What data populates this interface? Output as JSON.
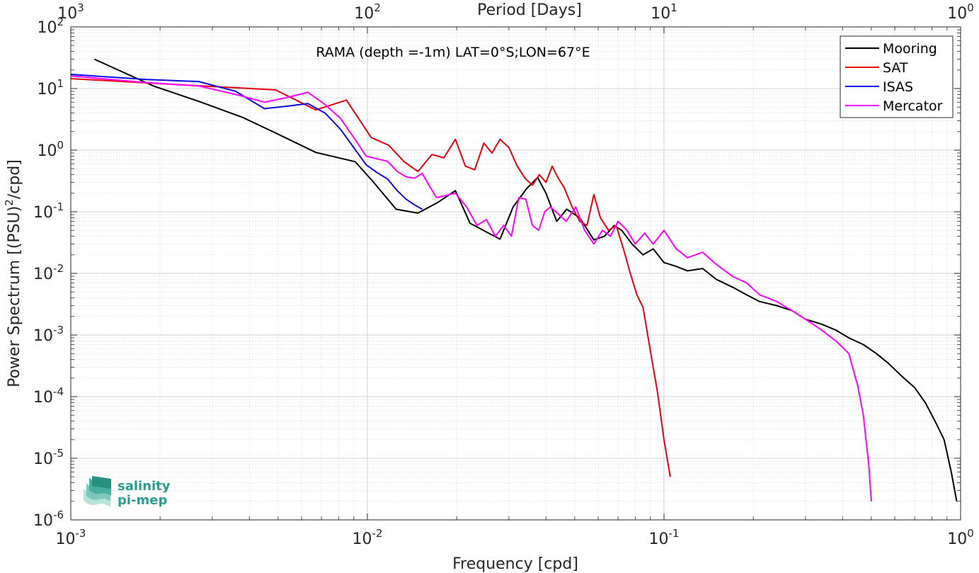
{
  "chart_data": {
    "type": "line",
    "xscale": "log",
    "yscale": "log",
    "title": "",
    "annotation": "RAMA (depth =-1m) LAT=0°S;LON=67°E",
    "xlabel": "Frequency [cpd]",
    "ylabel": "Power Spectrum [(PSU)",
    "ylabel_sup": "2",
    "ylabel_tail": "/cpd]",
    "top_xlabel": "Period [Days]",
    "xlim": [
      0.001,
      1
    ],
    "ylim": [
      1e-06,
      100
    ],
    "grid": true,
    "legend_position": "top-right",
    "x_ticks": [
      {
        "value": 0.001,
        "base": "10",
        "exp": "-3"
      },
      {
        "value": 0.01,
        "base": "10",
        "exp": "-2"
      },
      {
        "value": 0.1,
        "base": "10",
        "exp": "-1"
      },
      {
        "value": 1,
        "base": "10",
        "exp": "0"
      }
    ],
    "top_x_ticks": [
      {
        "value": 0.001,
        "base": "10",
        "exp": "3"
      },
      {
        "value": 0.01,
        "base": "10",
        "exp": "2"
      },
      {
        "value": 0.1,
        "base": "10",
        "exp": "1"
      },
      {
        "value": 1,
        "base": "10",
        "exp": "0"
      }
    ],
    "y_ticks": [
      {
        "value": 100,
        "base": "10",
        "exp": "2"
      },
      {
        "value": 10,
        "base": "10",
        "exp": "1"
      },
      {
        "value": 1,
        "base": "10",
        "exp": "0"
      },
      {
        "value": 0.1,
        "base": "10",
        "exp": "-1"
      },
      {
        "value": 0.01,
        "base": "10",
        "exp": "-2"
      },
      {
        "value": 0.001,
        "base": "10",
        "exp": "-3"
      },
      {
        "value": 0.0001,
        "base": "10",
        "exp": "-4"
      },
      {
        "value": 1e-05,
        "base": "10",
        "exp": "-5"
      },
      {
        "value": 1e-06,
        "base": "10",
        "exp": "-6"
      }
    ],
    "series": [
      {
        "name": "Mooring",
        "color": "#000000",
        "x": [
          0.0012,
          0.0019,
          0.0027,
          0.0038,
          0.0049,
          0.0067,
          0.0091,
          0.0105,
          0.0125,
          0.0148,
          0.0172,
          0.0198,
          0.0222,
          0.025,
          0.028,
          0.031,
          0.0345,
          0.0375,
          0.04,
          0.0435,
          0.047,
          0.052,
          0.058,
          0.063,
          0.068,
          0.072,
          0.078,
          0.085,
          0.092,
          0.1,
          0.11,
          0.12,
          0.135,
          0.15,
          0.17,
          0.19,
          0.21,
          0.24,
          0.27,
          0.3,
          0.34,
          0.38,
          0.42,
          0.47,
          0.52,
          0.57,
          0.63,
          0.7,
          0.76,
          0.82,
          0.88,
          0.93,
          0.97
        ],
        "y": [
          30,
          11,
          6.2,
          3.4,
          1.9,
          0.92,
          0.65,
          0.3,
          0.11,
          0.095,
          0.14,
          0.22,
          0.065,
          0.048,
          0.036,
          0.12,
          0.24,
          0.36,
          0.2,
          0.07,
          0.11,
          0.08,
          0.035,
          0.04,
          0.06,
          0.05,
          0.03,
          0.02,
          0.025,
          0.015,
          0.013,
          0.011,
          0.012,
          0.008,
          0.006,
          0.0045,
          0.0035,
          0.003,
          0.0025,
          0.0018,
          0.0015,
          0.0012,
          0.0009,
          0.0007,
          0.0005,
          0.00035,
          0.00022,
          0.00014,
          8e-05,
          4e-05,
          2e-05,
          6e-06,
          2e-06
        ]
      },
      {
        "name": "SAT",
        "color": "#e8000b",
        "x": [
          0.001,
          0.002,
          0.0049,
          0.0067,
          0.0085,
          0.0103,
          0.0118,
          0.0133,
          0.0148,
          0.0165,
          0.0181,
          0.0198,
          0.0214,
          0.023,
          0.0247,
          0.0263,
          0.028,
          0.03,
          0.032,
          0.034,
          0.036,
          0.038,
          0.04,
          0.042,
          0.044,
          0.046,
          0.049,
          0.052,
          0.055,
          0.058,
          0.061,
          0.065,
          0.069,
          0.073,
          0.077,
          0.081,
          0.085,
          0.09,
          0.095,
          0.1,
          0.105
        ],
        "y": [
          14.5,
          12,
          9.5,
          4.5,
          6.5,
          1.6,
          1.2,
          0.65,
          0.45,
          0.85,
          0.75,
          1.5,
          0.55,
          0.48,
          1.3,
          0.9,
          1.5,
          1.1,
          0.55,
          0.35,
          0.27,
          0.4,
          0.3,
          0.55,
          0.35,
          0.25,
          0.12,
          0.07,
          0.06,
          0.19,
          0.08,
          0.05,
          0.06,
          0.025,
          0.01,
          0.0045,
          0.0028,
          0.00055,
          0.00012,
          2e-05,
          5e-06
        ]
      },
      {
        "name": "ISAS",
        "color": "#0a0ae6",
        "x": [
          0.001,
          0.0018,
          0.0027,
          0.0036,
          0.0045,
          0.0054,
          0.0063,
          0.0072,
          0.0081,
          0.009,
          0.0099,
          0.0108,
          0.0117,
          0.0126,
          0.0135,
          0.0144,
          0.0153
        ],
        "y": [
          17,
          14,
          13,
          9,
          4.7,
          5.2,
          5.7,
          4,
          2.2,
          1.1,
          0.58,
          0.43,
          0.34,
          0.22,
          0.16,
          0.13,
          0.11
        ]
      },
      {
        "name": "Mercator",
        "color": "#ff00ff",
        "x": [
          0.001,
          0.0018,
          0.0027,
          0.0036,
          0.0045,
          0.0054,
          0.0063,
          0.0072,
          0.0081,
          0.009,
          0.0099,
          0.0108,
          0.0117,
          0.0126,
          0.0135,
          0.0144,
          0.0153,
          0.0162,
          0.0171,
          0.018,
          0.0198,
          0.0216,
          0.0234,
          0.0252,
          0.027,
          0.0288,
          0.0306,
          0.0324,
          0.0342,
          0.036,
          0.0378,
          0.0396,
          0.0414,
          0.0432,
          0.0468,
          0.0504,
          0.054,
          0.058,
          0.062,
          0.066,
          0.07,
          0.075,
          0.08,
          0.086,
          0.092,
          0.1,
          0.11,
          0.12,
          0.135,
          0.15,
          0.17,
          0.19,
          0.21,
          0.24,
          0.27,
          0.3,
          0.34,
          0.38,
          0.42,
          0.45,
          0.47,
          0.49,
          0.5
        ],
        "y": [
          16,
          12.5,
          11,
          8,
          6,
          7.2,
          8.7,
          5.5,
          3.3,
          1.6,
          0.8,
          0.72,
          0.66,
          0.45,
          0.37,
          0.35,
          0.42,
          0.26,
          0.17,
          0.18,
          0.2,
          0.12,
          0.06,
          0.075,
          0.04,
          0.06,
          0.04,
          0.17,
          0.16,
          0.06,
          0.05,
          0.1,
          0.12,
          0.1,
          0.07,
          0.12,
          0.05,
          0.03,
          0.05,
          0.04,
          0.07,
          0.05,
          0.03,
          0.045,
          0.03,
          0.05,
          0.025,
          0.018,
          0.022,
          0.014,
          0.009,
          0.007,
          0.0045,
          0.0035,
          0.0025,
          0.0018,
          0.0012,
          0.0008,
          0.0005,
          0.00015,
          5e-05,
          8e-06,
          2e-06
        ]
      }
    ]
  },
  "logo": {
    "line1": "salinity",
    "line2": "pi-mep",
    "color": "#2a9d8f"
  }
}
